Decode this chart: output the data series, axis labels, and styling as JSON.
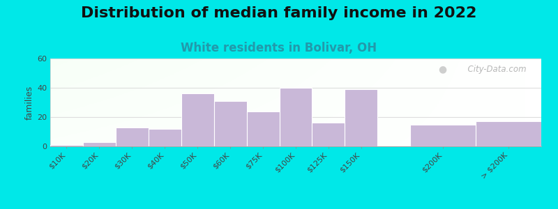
{
  "title": "Distribution of median family income in 2022",
  "subtitle": "White residents in Bolivar, OH",
  "ylabel": "families",
  "categories": [
    "$10K",
    "$20K",
    "$30K",
    "$40K",
    "$50K",
    "$60K",
    "$75K",
    "$100K",
    "$125K",
    "$150K",
    "$200K",
    "> $200K"
  ],
  "values": [
    1,
    3,
    13,
    12,
    36,
    31,
    24,
    40,
    16,
    39,
    15,
    17
  ],
  "x_positions": [
    0,
    1,
    2,
    3,
    4,
    5,
    6,
    7,
    8,
    9,
    11,
    13
  ],
  "bar_widths": [
    1,
    1,
    1,
    1,
    1,
    1,
    1,
    1,
    1,
    1,
    2,
    2
  ],
  "bar_color": "#c9b8d8",
  "bar_edge_color": "#ffffff",
  "ylim": [
    0,
    60
  ],
  "yticks": [
    0,
    20,
    40,
    60
  ],
  "background_color": "#00e8e8",
  "plot_bg_top_left": "#ddeedd",
  "plot_bg_right": "#f5f5f5",
  "title_fontsize": 16,
  "subtitle_fontsize": 12,
  "subtitle_color": "#2299aa",
  "watermark_text": "City-Data.com",
  "grid_color": "#dddddd",
  "ylabel_fontsize": 9,
  "tick_fontsize": 8
}
